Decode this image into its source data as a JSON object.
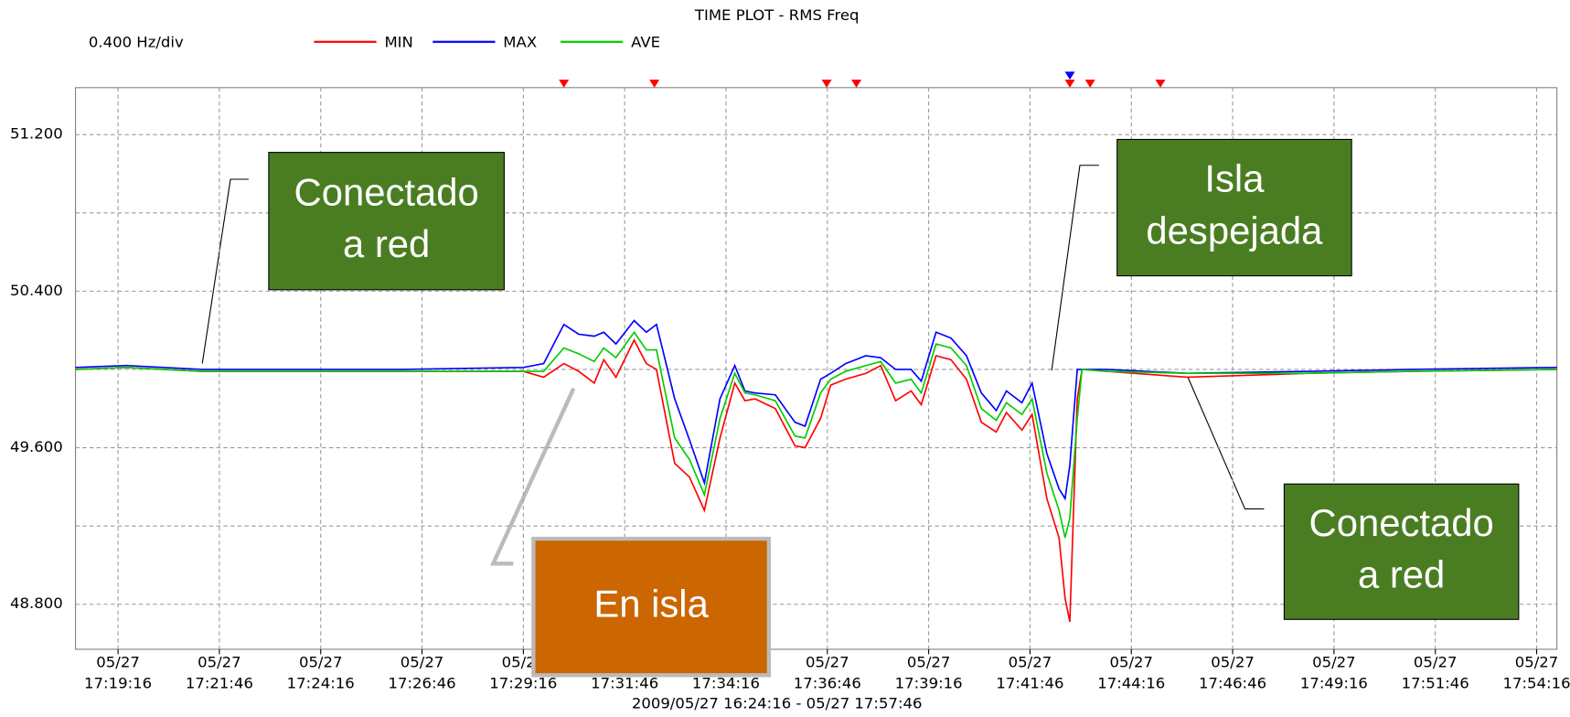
{
  "chart_data": {
    "type": "line",
    "title": "TIME PLOT - RMS  Freq",
    "subtitle": "2009/05/27 16:24:16 - 05/27 17:57:46",
    "ylabel": "0.400 Hz/div",
    "x": [
      "17:18:13",
      "17:19:28",
      "17:21:20",
      "17:23:49",
      "17:26:17",
      "17:29:16",
      "17:29:46",
      "17:30:16",
      "17:30:38",
      "17:31:01",
      "17:31:15",
      "17:31:33",
      "17:32:00",
      "17:32:18",
      "17:32:33",
      "17:33:00",
      "17:33:22",
      "17:33:44",
      "17:34:07",
      "17:34:29",
      "17:34:44",
      "17:34:59",
      "17:35:29",
      "17:35:58",
      "17:36:13",
      "17:36:36",
      "17:36:51",
      "17:37:13",
      "17:37:43",
      "17:38:05",
      "17:38:27",
      "17:38:50",
      "17:39:05",
      "17:39:27",
      "17:39:49",
      "17:40:12",
      "17:40:34",
      "17:40:56",
      "17:41:11",
      "17:41:34",
      "17:41:49",
      "17:42:11",
      "17:42:29",
      "17:42:38",
      "17:42:45",
      "17:42:56",
      "17:43:03",
      "17:43:40",
      "17:45:39",
      "17:48:38",
      "17:51:07",
      "17:54:46"
    ],
    "series": [
      {
        "name": "MIN",
        "color": "#ff0000",
        "values": [
          50.0,
          50.01,
          49.99,
          49.99,
          49.99,
          49.99,
          49.96,
          50.03,
          49.99,
          49.93,
          50.05,
          49.96,
          50.15,
          50.03,
          50.0,
          49.52,
          49.45,
          49.28,
          49.65,
          49.93,
          49.84,
          49.85,
          49.8,
          49.61,
          49.6,
          49.75,
          49.92,
          49.95,
          49.98,
          50.02,
          49.84,
          49.89,
          49.82,
          50.07,
          50.05,
          49.95,
          49.73,
          49.68,
          49.78,
          49.69,
          49.77,
          49.34,
          49.14,
          48.83,
          48.71,
          49.85,
          50.0,
          49.99,
          49.96,
          49.98,
          49.99,
          50.0
        ]
      },
      {
        "name": "MAX",
        "color": "#0000ff",
        "values": [
          50.01,
          50.02,
          50.0,
          50.0,
          50.0,
          50.01,
          50.03,
          50.23,
          50.18,
          50.17,
          50.19,
          50.13,
          50.25,
          50.19,
          50.23,
          49.85,
          49.64,
          49.42,
          49.85,
          50.02,
          49.89,
          49.88,
          49.87,
          49.73,
          49.71,
          49.95,
          49.98,
          50.03,
          50.07,
          50.06,
          50.0,
          50.0,
          49.94,
          50.19,
          50.16,
          50.07,
          49.88,
          49.79,
          49.89,
          49.83,
          49.93,
          49.57,
          49.39,
          49.34,
          49.51,
          50.0,
          50.0,
          50.0,
          49.98,
          49.99,
          50.0,
          50.01
        ]
      },
      {
        "name": "AVE",
        "color": "#00cc00",
        "values": [
          50.0,
          50.01,
          49.99,
          49.99,
          49.99,
          49.99,
          49.99,
          50.11,
          50.08,
          50.04,
          50.11,
          50.06,
          50.19,
          50.1,
          50.1,
          49.65,
          49.54,
          49.36,
          49.75,
          49.98,
          49.88,
          49.87,
          49.84,
          49.66,
          49.65,
          49.88,
          49.95,
          49.99,
          50.02,
          50.04,
          49.93,
          49.95,
          49.88,
          50.13,
          50.11,
          50.02,
          49.8,
          49.74,
          49.83,
          49.77,
          49.85,
          49.47,
          49.28,
          49.14,
          49.24,
          49.75,
          50.0,
          49.99,
          49.98,
          49.98,
          49.99,
          50.0
        ]
      }
    ],
    "xlim": [
      "17:18:13",
      "17:54:46"
    ],
    "xticks": [
      "17:19:16",
      "17:21:46",
      "17:24:16",
      "17:26:46",
      "17:29:16",
      "17:31:46",
      "17:34:16",
      "17:36:46",
      "17:39:16",
      "17:41:46",
      "17:44:16",
      "17:46:46",
      "17:49:16",
      "17:51:46",
      "17:54:16"
    ],
    "xtick_dates": [
      "05/27",
      "05/27",
      "05/27",
      "05/27",
      "05/27",
      "05/27",
      "05/27",
      "05/27",
      "05/27",
      "05/27",
      "05/27",
      "05/27",
      "05/27",
      "05/27",
      "05/27"
    ],
    "ylim": [
      48.57,
      51.44
    ],
    "yticks": [
      {
        "value": 51.2,
        "label": "51.200"
      },
      {
        "value": 50.4,
        "label": "50.400"
      },
      {
        "value": 49.6,
        "label": "49.600"
      },
      {
        "value": 48.8,
        "label": "48.800"
      }
    ],
    "yticks_minor": [
      50.8,
      50.0,
      49.2
    ],
    "grid": true,
    "markers": [
      {
        "time": "17:30:16",
        "color": "#ff0000"
      },
      {
        "time": "17:32:30",
        "color": "#ff0000"
      },
      {
        "time": "17:36:45",
        "color": "#ff0000"
      },
      {
        "time": "17:37:29",
        "color": "#ff0000"
      },
      {
        "time": "17:42:45",
        "color": "#0000ff"
      },
      {
        "time": "17:42:45",
        "color": "#ff0000"
      },
      {
        "time": "17:43:15",
        "color": "#ff0000"
      },
      {
        "time": "17:44:59",
        "color": "#ff0000"
      }
    ],
    "annotations": [
      {
        "lines": [
          "Conectado",
          "a  red"
        ],
        "color": "#4a7d22"
      },
      {
        "lines": [
          "Isla",
          "despejada"
        ],
        "color": "#4a7d22"
      },
      {
        "lines": [
          "En isla"
        ],
        "color": "#cc6600"
      },
      {
        "lines": [
          "Conectado",
          "a  red"
        ],
        "color": "#4a7d22"
      }
    ]
  }
}
